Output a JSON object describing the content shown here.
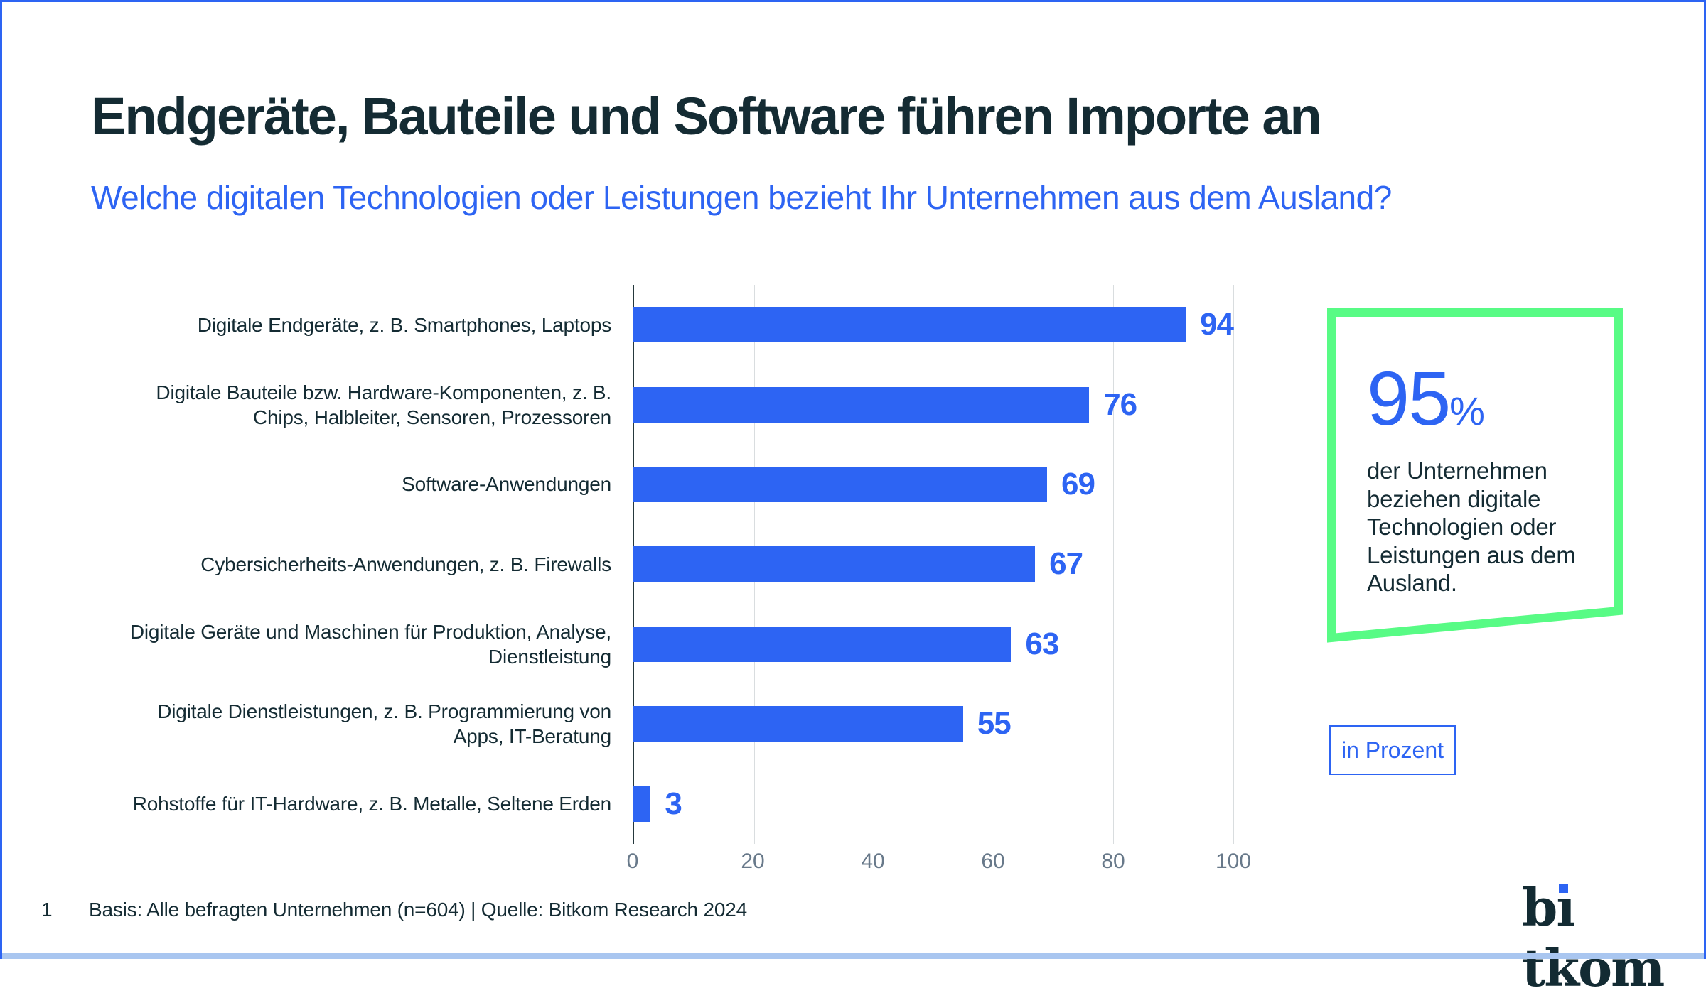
{
  "slide": {
    "page_number": "1",
    "title": "Endgeräte, Bauteile und Software führen Importe an",
    "subtitle": "Welche digitalen Technologien oder Leistungen bezieht Ihr Unternehmen aus dem Ausland?",
    "footer": "Basis: Alle befragten Unternehmen (n=604) | Quelle: Bitkom Research 2024",
    "logo_text": "bitkom",
    "logo_parts": {
      "pre": "b",
      "i_dotless": "ı",
      "post": "tkom"
    }
  },
  "chart_data": {
    "type": "bar",
    "orientation": "horizontal",
    "title": "",
    "xlabel": "",
    "ylabel": "",
    "unit": "Prozent",
    "grid": true,
    "xlim": [
      0,
      100
    ],
    "x_ticks": [
      0,
      20,
      40,
      60,
      80,
      100
    ],
    "categories": [
      "Digitale Endgeräte, z. B. Smartphones, Laptops",
      "Digitale Bauteile bzw. Hardware-Komponenten, z. B.\nChips, Halbleiter, Sensoren, Prozessoren",
      "Software-Anwendungen",
      "Cybersicherheits-Anwendungen, z. B. Firewalls",
      "Digitale Geräte und Maschinen für Produktion, Analyse,\nDienstleistung",
      "Digitale Dienstleistungen, z. B. Programmierung von\nApps, IT-Beratung",
      "Rohstoffe für IT-Hardware, z. B. Metalle, Seltene Erden"
    ],
    "values": [
      94,
      76,
      69,
      67,
      63,
      55,
      3
    ]
  },
  "callout": {
    "value": "95",
    "percent_sign": "%",
    "text": "der Unternehmen\nbeziehen digitale\nTechnologien oder\nLeistungen aus dem\nAusland."
  },
  "unit_box": {
    "label": "in Prozent"
  },
  "colors": {
    "accent_blue": "#2d64f3",
    "dark_text": "#142b33",
    "callout_green": "#58fb85",
    "gridline": "#d9dddf",
    "tick_text": "#68798a",
    "bottom_strip": "#a9c6f0"
  }
}
